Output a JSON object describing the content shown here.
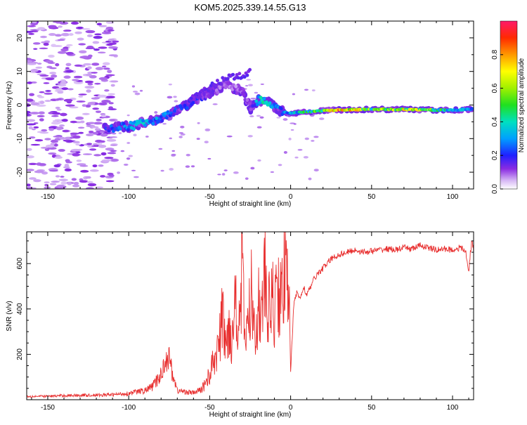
{
  "figure": {
    "title": "KOM5.2025.339.14.55.G13"
  },
  "chart_data": [
    {
      "type": "heatmap",
      "panel": "top",
      "xlabel": "Height of straight line (km)",
      "ylabel": "Frequency (Hz)",
      "xlim": [
        -163,
        113
      ],
      "ylim": [
        -25,
        25
      ],
      "xticks": [
        -150,
        -100,
        -50,
        0,
        50,
        100
      ],
      "yticks": [
        -20,
        -10,
        0,
        10,
        20
      ],
      "grid": false,
      "colorbar": {
        "label": "Normalized spectral amplitude",
        "range": [
          0,
          1
        ],
        "ticks": [
          0.0,
          0.2,
          0.4,
          0.6,
          0.8
        ]
      },
      "ridge": {
        "description_points_x": [
          -115,
          -100,
          -90,
          -80,
          -70,
          -60,
          -50,
          -40,
          -30,
          -25,
          -20,
          -15,
          -10,
          -5,
          0,
          10,
          20,
          30,
          40,
          50,
          60,
          70,
          80,
          90,
          100,
          113
        ],
        "description_points_y": [
          -7,
          -6.5,
          -5,
          -4,
          -1.5,
          1,
          3.5,
          6,
          4,
          -1,
          1.5,
          1,
          -0.5,
          -2,
          -2.5,
          -2,
          -1.7,
          -1.5,
          -1.4,
          -1.3,
          -1.3,
          -1.3,
          -1.4,
          -1.5,
          -1.5,
          -1.2
        ],
        "peak_amplitude": [
          0.2,
          0.3,
          0.35,
          0.3,
          0.2,
          0.2,
          0.15,
          0.1,
          0.1,
          0.15,
          0.35,
          0.4,
          0.3,
          0.3,
          0.35,
          0.45,
          0.6,
          0.8,
          0.7,
          0.55,
          0.6,
          0.65,
          0.6,
          0.5,
          0.4,
          0.3
        ]
      }
    },
    {
      "type": "line",
      "panel": "bottom",
      "xlabel": "Height of straight line (km)",
      "ylabel": "SNR (v/v)",
      "xlim": [
        -163,
        113
      ],
      "ylim": [
        0,
        740
      ],
      "xticks": [
        -150,
        -100,
        -50,
        0,
        50,
        100
      ],
      "yticks": [
        200,
        400,
        600
      ],
      "grid": false,
      "series": [
        {
          "name": "SNR",
          "color": "#e83030",
          "x": [
            -163,
            -150,
            -140,
            -130,
            -120,
            -110,
            -100,
            -95,
            -90,
            -85,
            -80,
            -78,
            -76,
            -74,
            -72,
            -70,
            -65,
            -60,
            -55,
            -50,
            -47,
            -44,
            -42,
            -40,
            -38,
            -36,
            -34,
            -32,
            -30,
            -28,
            -26,
            -24,
            -22,
            -20,
            -18,
            -16,
            -14,
            -12,
            -10,
            -8,
            -6,
            -4,
            -2,
            -1,
            0,
            2,
            4,
            6,
            8,
            10,
            15,
            20,
            25,
            30,
            35,
            40,
            45,
            50,
            55,
            60,
            65,
            70,
            75,
            80,
            85,
            90,
            95,
            100,
            105,
            108,
            110,
            111,
            112,
            113
          ],
          "y": [
            15,
            15,
            18,
            20,
            20,
            22,
            28,
            35,
            40,
            60,
            110,
            160,
            200,
            150,
            90,
            40,
            35,
            30,
            45,
            110,
            180,
            250,
            380,
            220,
            330,
            260,
            500,
            300,
            560,
            260,
            350,
            480,
            300,
            420,
            350,
            560,
            340,
            480,
            380,
            520,
            420,
            560,
            480,
            620,
            130,
            420,
            480,
            440,
            500,
            460,
            540,
            580,
            620,
            640,
            650,
            660,
            650,
            655,
            660,
            665,
            660,
            670,
            665,
            680,
            670,
            660,
            665,
            660,
            670,
            655,
            560,
            650,
            700,
            660
          ]
        }
      ]
    }
  ]
}
